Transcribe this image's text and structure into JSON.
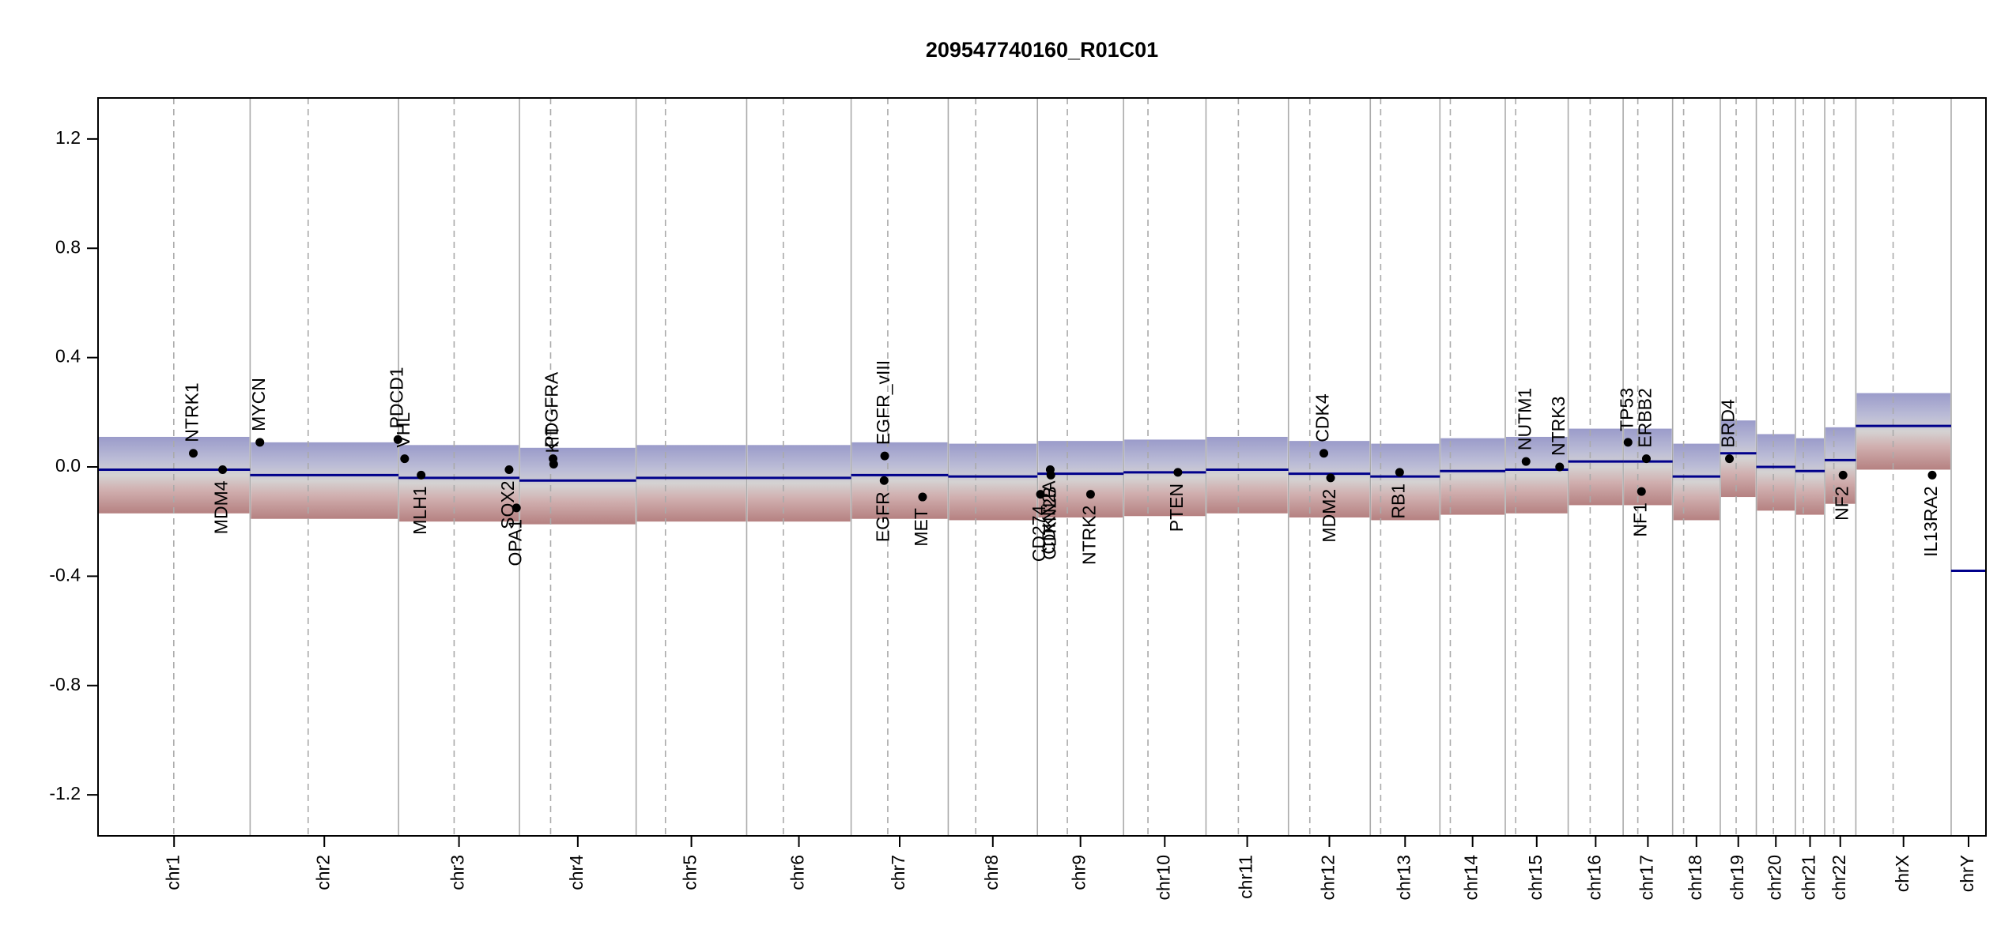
{
  "chart_data": {
    "type": "scatter",
    "title": "209547740160_R01C01",
    "xlabel": "",
    "ylabel": "",
    "ylim": [
      -1.35,
      1.35
    ],
    "y_ticks": [
      1.2,
      0.8,
      0.4,
      0.0,
      -0.4,
      -0.8,
      -1.2
    ],
    "y_tick_labels": [
      "1.2",
      "0.8",
      "0.4",
      "0.0",
      "-0.4",
      "-0.8",
      "-1.2"
    ],
    "grid": false,
    "legend": "none",
    "colors": {
      "gain": "#8a8cc0",
      "neutral": "#c8c8c8",
      "loss": "#b57a7a",
      "segment": "#00008b",
      "chromosome_boundary": "#aaaaaa",
      "centromere": "#aaaaaa",
      "gene_point": "#000000"
    },
    "chromosomes": [
      {
        "name": "chr1",
        "start": 0,
        "end": 249,
        "centromere": 124
      },
      {
        "name": "chr2",
        "start": 249,
        "end": 492,
        "centromere": 344
      },
      {
        "name": "chr3",
        "start": 492,
        "end": 690,
        "centromere": 583
      },
      {
        "name": "chr4",
        "start": 690,
        "end": 881,
        "centromere": 741
      },
      {
        "name": "chr5",
        "start": 881,
        "end": 1062,
        "centromere": 929
      },
      {
        "name": "chr6",
        "start": 1062,
        "end": 1233,
        "centromere": 1122
      },
      {
        "name": "chr7",
        "start": 1233,
        "end": 1392,
        "centromere": 1293
      },
      {
        "name": "chr8",
        "start": 1392,
        "end": 1538,
        "centromere": 1437
      },
      {
        "name": "chr9",
        "start": 1538,
        "end": 1679,
        "centromere": 1587
      },
      {
        "name": "chr10",
        "start": 1679,
        "end": 1814,
        "centromere": 1719
      },
      {
        "name": "chr11",
        "start": 1814,
        "end": 1949,
        "centromere": 1867
      },
      {
        "name": "chr12",
        "start": 1949,
        "end": 2083,
        "centromere": 1984
      },
      {
        "name": "chr13",
        "start": 2083,
        "end": 2197,
        "centromere": 2100
      },
      {
        "name": "chr14",
        "start": 2197,
        "end": 2304,
        "centromere": 2214
      },
      {
        "name": "chr15",
        "start": 2304,
        "end": 2407,
        "centromere": 2321
      },
      {
        "name": "chr16",
        "start": 2407,
        "end": 2497,
        "centromere": 2443
      },
      {
        "name": "chr17",
        "start": 2497,
        "end": 2578,
        "centromere": 2521
      },
      {
        "name": "chr18",
        "start": 2578,
        "end": 2656,
        "centromere": 2596
      },
      {
        "name": "chr19",
        "start": 2656,
        "end": 2715,
        "centromere": 2682
      },
      {
        "name": "chr20",
        "start": 2715,
        "end": 2779,
        "centromere": 2743
      },
      {
        "name": "chr21",
        "start": 2779,
        "end": 2827,
        "centromere": 2792
      },
      {
        "name": "chr22",
        "start": 2827,
        "end": 2878,
        "centromere": 2842
      },
      {
        "name": "chrX",
        "start": 2878,
        "end": 3034,
        "centromere": 2939
      },
      {
        "name": "chrY",
        "start": 3034,
        "end": 3091,
        "centromere": null
      }
    ],
    "segments": [
      {
        "x0": 0,
        "x1": 249,
        "y": -0.01
      },
      {
        "x0": 249,
        "x1": 492,
        "y": -0.03
      },
      {
        "x0": 492,
        "x1": 690,
        "y": -0.04
      },
      {
        "x0": 690,
        "x1": 881,
        "y": -0.05
      },
      {
        "x0": 881,
        "x1": 1062,
        "y": -0.04
      },
      {
        "x0": 1062,
        "x1": 1233,
        "y": -0.04
      },
      {
        "x0": 1233,
        "x1": 1392,
        "y": -0.03
      },
      {
        "x0": 1392,
        "x1": 1538,
        "y": -0.035
      },
      {
        "x0": 1538,
        "x1": 1679,
        "y": -0.025
      },
      {
        "x0": 1679,
        "x1": 1814,
        "y": -0.02
      },
      {
        "x0": 1814,
        "x1": 1949,
        "y": -0.01
      },
      {
        "x0": 1949,
        "x1": 2083,
        "y": -0.025
      },
      {
        "x0": 2083,
        "x1": 2197,
        "y": -0.035
      },
      {
        "x0": 2197,
        "x1": 2304,
        "y": -0.015
      },
      {
        "x0": 2304,
        "x1": 2407,
        "y": -0.01
      },
      {
        "x0": 2407,
        "x1": 2497,
        "y": 0.02
      },
      {
        "x0": 2497,
        "x1": 2578,
        "y": 0.02
      },
      {
        "x0": 2578,
        "x1": 2656,
        "y": -0.035
      },
      {
        "x0": 2656,
        "x1": 2715,
        "y": 0.05
      },
      {
        "x0": 2715,
        "x1": 2779,
        "y": 0.0
      },
      {
        "x0": 2779,
        "x1": 2827,
        "y": -0.015
      },
      {
        "x0": 2827,
        "x1": 2878,
        "y": 0.025
      },
      {
        "x0": 2878,
        "x1": 3034,
        "y": 0.15
      },
      {
        "x0": 3034,
        "x1": 3091,
        "y": -0.38
      }
    ],
    "genes": [
      {
        "name": "NTRK1",
        "x": 156,
        "y": 0.05,
        "label_side": "up"
      },
      {
        "name": "MDM4",
        "x": 204,
        "y": -0.01,
        "label_side": "down"
      },
      {
        "name": "MYCN",
        "x": 265,
        "y": 0.09,
        "label_side": "up"
      },
      {
        "name": "PDCD1",
        "x": 491,
        "y": 0.1,
        "label_side": "up"
      },
      {
        "name": "VHL",
        "x": 502,
        "y": 0.03,
        "label_side": "up"
      },
      {
        "name": "MLH1",
        "x": 529,
        "y": -0.03,
        "label_side": "down"
      },
      {
        "name": "SOX2",
        "x": 673,
        "y": -0.01,
        "label_side": "down"
      },
      {
        "name": "OPA1",
        "x": 685,
        "y": -0.15,
        "label_side": "down"
      },
      {
        "name": "PDGFRA",
        "x": 745,
        "y": 0.03,
        "label_side": "up"
      },
      {
        "name": "KIT",
        "x": 746,
        "y": 0.01,
        "label_side": "up"
      },
      {
        "name": "EGFR_vIII",
        "x": 1288,
        "y": 0.04,
        "label_side": "up"
      },
      {
        "name": "EGFR",
        "x": 1287,
        "y": -0.05,
        "label_side": "down"
      },
      {
        "name": "MET",
        "x": 1350,
        "y": -0.11,
        "label_side": "down"
      },
      {
        "name": "CD274",
        "x": 1543,
        "y": -0.1,
        "label_side": "down"
      },
      {
        "name": "CDKN2A",
        "x": 1559,
        "y": -0.01,
        "label_side": "down"
      },
      {
        "name": "CDKN2B",
        "x": 1560,
        "y": -0.03,
        "label_side": "down"
      },
      {
        "name": "NTRK2",
        "x": 1625,
        "y": -0.1,
        "label_side": "down"
      },
      {
        "name": "PTEN",
        "x": 1768,
        "y": -0.02,
        "label_side": "down"
      },
      {
        "name": "CDK4",
        "x": 2007,
        "y": 0.05,
        "label_side": "up"
      },
      {
        "name": "MDM2",
        "x": 2018,
        "y": -0.04,
        "label_side": "down"
      },
      {
        "name": "RB1",
        "x": 2131,
        "y": -0.02,
        "label_side": "down"
      },
      {
        "name": "NUTM1",
        "x": 2338,
        "y": 0.02,
        "label_side": "up"
      },
      {
        "name": "NTRK3",
        "x": 2393,
        "y": 0.0,
        "label_side": "up"
      },
      {
        "name": "TP53",
        "x": 2505,
        "y": 0.09,
        "label_side": "up"
      },
      {
        "name": "ERBB2",
        "x": 2535,
        "y": 0.03,
        "label_side": "up"
      },
      {
        "name": "NF1",
        "x": 2527,
        "y": -0.09,
        "label_side": "down"
      },
      {
        "name": "BRD4",
        "x": 2671,
        "y": 0.03,
        "label_side": "up"
      },
      {
        "name": "NF2",
        "x": 2857,
        "y": -0.03,
        "label_side": "down"
      },
      {
        "name": "IL13RA2",
        "x": 3003,
        "y": -0.03,
        "label_side": "down"
      }
    ]
  }
}
